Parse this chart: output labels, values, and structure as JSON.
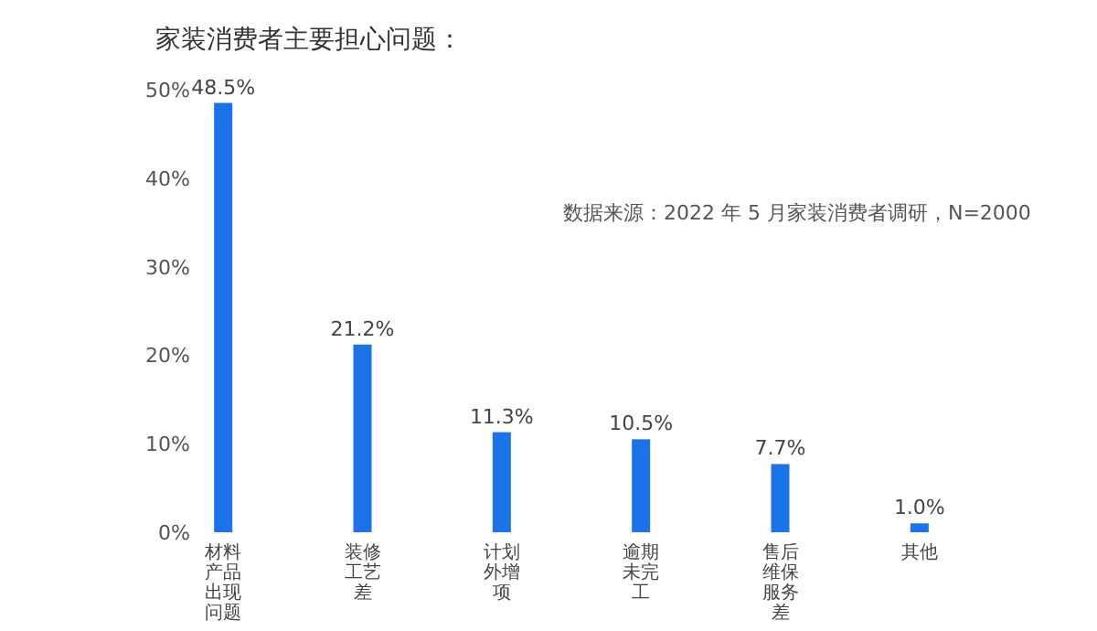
{
  "chart_data": {
    "type": "bar",
    "title": "家装消费者主要担心问题：",
    "categories": [
      "材料产品出现问题",
      "装修工艺差",
      "计划外增项",
      "逾期未完工",
      "售后维保服务差",
      "其他"
    ],
    "values": [
      48.5,
      21.2,
      11.3,
      10.5,
      7.7,
      1.0
    ],
    "value_labels": [
      "48.5%",
      "21.2%",
      "11.3%",
      "10.5%",
      "7.7%",
      "1.0%"
    ],
    "color": "#1a73e8",
    "ylim": [
      0,
      50
    ],
    "yticks": [
      {
        "value": 0,
        "label": "0%"
      },
      {
        "value": 10,
        "label": "10%"
      },
      {
        "value": 20,
        "label": "20%"
      },
      {
        "value": 30,
        "label": "30%"
      },
      {
        "value": 40,
        "label": "40%"
      },
      {
        "value": 50,
        "label": "50%"
      }
    ],
    "grid": false,
    "annotations": [
      "数据来源：2022 年 5 月家装消费者调研，N=2000"
    ]
  }
}
